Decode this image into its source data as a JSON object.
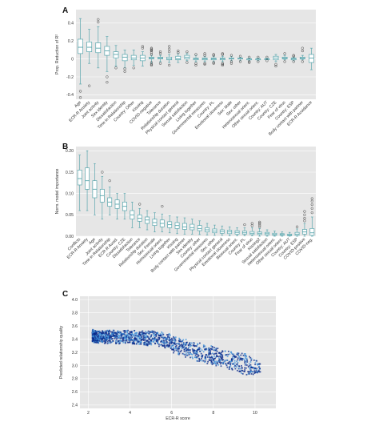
{
  "panels": {
    "A": {
      "label": "A"
    },
    "B": {
      "label": "B"
    },
    "C": {
      "label": "C"
    }
  },
  "colors": {
    "box": "#5aa6ad",
    "background": "#e6e6e6",
    "outlier": "#444444",
    "scatter_dark": "#0a2a8a",
    "scatter_light": "#3d8fd8"
  },
  "chart_data": [
    {
      "type": "box",
      "panel": "A",
      "ylabel": "Prop. Reduction of R²",
      "ylim": [
        -0.45,
        0.55
      ],
      "yticks": [
        -0.4,
        -0.2,
        0.0,
        0.2,
        0.4
      ],
      "grid": true,
      "categories": [
        "Age",
        "ECR-R Anxiety",
        "Joint activity",
        "Sex identity",
        "Dissatisfaction",
        "Time in Relationship",
        "Country: Other",
        "Kissing",
        "COVID-negative",
        "Tolerance",
        "Relationship duration",
        "Physical contact general",
        "Sexual satisfaction",
        "Living together",
        "Governmental measures",
        "Country: PL",
        "Emotional closeness",
        "Sex: Male",
        "Sex: other",
        "Heterosexual orient.",
        "Other sexual orient.",
        "Country: AUT",
        "Country: CZE",
        "Fear of virus",
        "Country: ESP",
        "Body contact with partner",
        "ECR-R Avoidance"
      ],
      "stats": [
        {
          "min": -0.28,
          "q1": 0.06,
          "median": 0.13,
          "q3": 0.22,
          "max": 0.45,
          "outliers": [
            -0.36,
            -0.43
          ]
        },
        {
          "min": -0.05,
          "q1": 0.08,
          "median": 0.13,
          "q3": 0.19,
          "max": 0.33,
          "outliers": [
            -0.3
          ]
        },
        {
          "min": -0.1,
          "q1": 0.07,
          "median": 0.12,
          "q3": 0.18,
          "max": 0.36,
          "outliers": [
            0.41,
            0.44
          ]
        },
        {
          "min": -0.14,
          "q1": 0.04,
          "median": 0.09,
          "q3": 0.14,
          "max": 0.25,
          "outliers": [
            -0.2,
            -0.26
          ]
        },
        {
          "min": -0.08,
          "q1": 0.01,
          "median": 0.05,
          "q3": 0.08,
          "max": 0.15,
          "outliers": [
            -0.1
          ]
        },
        {
          "min": -0.1,
          "q1": -0.02,
          "median": 0.02,
          "q3": 0.05,
          "max": 0.1,
          "outliers": [
            -0.11,
            -0.14
          ]
        },
        {
          "min": -0.07,
          "q1": -0.01,
          "median": 0.01,
          "q3": 0.04,
          "max": 0.1,
          "outliers": [
            -0.1
          ]
        },
        {
          "min": -0.08,
          "q1": -0.02,
          "median": 0.01,
          "q3": 0.04,
          "max": 0.08,
          "outliers": [
            0.12,
            0.14
          ]
        },
        {
          "min": -0.05,
          "q1": 0.0,
          "median": 0.01,
          "q3": 0.02,
          "max": 0.04,
          "outliers": [
            0.05,
            0.07,
            0.09,
            0.1,
            0.11,
            0.12,
            -0.04,
            -0.06,
            -0.07
          ]
        },
        {
          "min": -0.03,
          "q1": 0.0,
          "median": 0.01,
          "q3": 0.02,
          "max": 0.04,
          "outliers": [
            0.06,
            0.08,
            -0.05
          ]
        },
        {
          "min": -0.04,
          "q1": -0.01,
          "median": 0.0,
          "q3": 0.02,
          "max": 0.05,
          "outliers": [
            0.08,
            0.11,
            0.14,
            -0.07
          ]
        },
        {
          "min": -0.04,
          "q1": -0.01,
          "median": 0.0,
          "q3": 0.03,
          "max": 0.06,
          "outliers": [
            0.07,
            0.09
          ]
        },
        {
          "min": -0.02,
          "q1": 0.0,
          "median": 0.02,
          "q3": 0.04,
          "max": 0.06,
          "outliers": [
            0.08,
            -0.04
          ]
        },
        {
          "min": -0.03,
          "q1": -0.01,
          "median": 0.0,
          "q3": 0.01,
          "max": 0.04,
          "outliers": [
            0.05,
            -0.05,
            -0.07
          ]
        },
        {
          "min": -0.03,
          "q1": -0.01,
          "median": 0.0,
          "q3": 0.01,
          "max": 0.03,
          "outliers": [
            0.04,
            0.06,
            -0.05,
            -0.06
          ]
        },
        {
          "min": -0.03,
          "q1": -0.01,
          "median": 0.0,
          "q3": 0.01,
          "max": 0.03,
          "outliers": [
            0.04,
            0.05,
            -0.04,
            -0.05
          ]
        },
        {
          "min": -0.03,
          "q1": -0.01,
          "median": 0.0,
          "q3": 0.01,
          "max": 0.03,
          "outliers": [
            0.05,
            0.06,
            -0.05,
            -0.06,
            -0.07
          ]
        },
        {
          "min": -0.02,
          "q1": 0.0,
          "median": 0.0,
          "q3": 0.01,
          "max": 0.03,
          "outliers": [
            0.04,
            -0.03,
            -0.05
          ]
        },
        {
          "min": -0.02,
          "q1": 0.0,
          "median": 0.0,
          "q3": 0.01,
          "max": 0.02,
          "outliers": [
            0.03,
            -0.03
          ]
        },
        {
          "min": -0.02,
          "q1": -0.01,
          "median": 0.0,
          "q3": 0.0,
          "max": 0.01,
          "outliers": [
            0.02,
            -0.03,
            -0.04
          ]
        },
        {
          "min": -0.02,
          "q1": -0.01,
          "median": 0.0,
          "q3": 0.0,
          "max": 0.01,
          "outliers": [
            0.02,
            -0.03
          ]
        },
        {
          "min": -0.01,
          "q1": 0.0,
          "median": 0.0,
          "q3": 0.0,
          "max": 0.01,
          "outliers": [
            0.02,
            -0.02
          ]
        },
        {
          "min": -0.03,
          "q1": -0.01,
          "median": 0.01,
          "q3": 0.03,
          "max": 0.05,
          "outliers": [
            -0.06,
            -0.08
          ]
        },
        {
          "min": -0.01,
          "q1": 0.0,
          "median": 0.01,
          "q3": 0.02,
          "max": 0.04,
          "outliers": [
            0.06,
            -0.03
          ]
        },
        {
          "min": -0.02,
          "q1": -0.01,
          "median": 0.0,
          "q3": 0.01,
          "max": 0.02,
          "outliers": [
            0.03,
            0.04,
            -0.03
          ]
        },
        {
          "min": -0.01,
          "q1": 0.0,
          "median": 0.01,
          "q3": 0.02,
          "max": 0.04,
          "outliers": [
            0.09,
            0.12,
            -0.03
          ]
        },
        {
          "min": -0.12,
          "q1": -0.04,
          "median": 0.01,
          "q3": 0.05,
          "max": 0.12,
          "outliers": []
        }
      ]
    },
    {
      "type": "box",
      "panel": "B",
      "ylabel": "Norm. model importance",
      "ylim": [
        0,
        0.21
      ],
      "yticks": [
        0.0,
        0.05,
        0.1,
        0.15,
        0.2
      ],
      "yticklabels": [
        "0.00",
        "0.05",
        "0.10",
        "0.15",
        "0.20"
      ],
      "grid": true,
      "categories": [
        "Conflicts",
        "ECR-R Anxiety",
        "Age",
        "Joint activity",
        "Time in Relationship",
        "ECR-R Avoid.",
        "Country: CZE",
        "Dissatisfaction",
        "Tolerance",
        "Relationship duration",
        "Sex: Female",
        "Homosexual orient.",
        "Living together",
        "Kissing",
        "Body contact with partner",
        "Sex identity",
        "Country: other",
        "Governmental measures",
        "Sex: other",
        "Physical contact general",
        "Emotional closeness",
        "Bisexual orient.",
        "Country: PL",
        "Fear of virus",
        "Kissing2",
        "Sexual satisfaction",
        "Heterosexual orient.",
        "Other sexual orient.",
        "Country: AUT",
        "Country: ESP",
        "COVID-positive",
        "COVID-neg."
      ],
      "stats": [
        {
          "min": 0.06,
          "q1": 0.12,
          "median": 0.135,
          "q3": 0.155,
          "max": 0.19,
          "outliers": []
        },
        {
          "min": 0.06,
          "q1": 0.11,
          "median": 0.13,
          "q3": 0.16,
          "max": 0.2,
          "outliers": []
        },
        {
          "min": 0.05,
          "q1": 0.09,
          "median": 0.11,
          "q3": 0.13,
          "max": 0.17,
          "outliers": []
        },
        {
          "min": 0.04,
          "q1": 0.08,
          "median": 0.095,
          "q3": 0.11,
          "max": 0.14,
          "outliers": [
            0.15
          ]
        },
        {
          "min": 0.05,
          "q1": 0.07,
          "median": 0.08,
          "q3": 0.09,
          "max": 0.115,
          "outliers": [
            0.13
          ]
        },
        {
          "min": 0.04,
          "q1": 0.065,
          "median": 0.075,
          "q3": 0.085,
          "max": 0.1,
          "outliers": []
        },
        {
          "min": 0.04,
          "q1": 0.06,
          "median": 0.07,
          "q3": 0.08,
          "max": 0.1,
          "outliers": []
        },
        {
          "min": 0.02,
          "q1": 0.04,
          "median": 0.05,
          "q3": 0.06,
          "max": 0.08,
          "outliers": []
        },
        {
          "min": 0.02,
          "q1": 0.035,
          "median": 0.042,
          "q3": 0.05,
          "max": 0.065,
          "outliers": [
            0.075
          ]
        },
        {
          "min": 0.015,
          "q1": 0.03,
          "median": 0.038,
          "q3": 0.045,
          "max": 0.06,
          "outliers": []
        },
        {
          "min": 0.01,
          "q1": 0.025,
          "median": 0.032,
          "q3": 0.04,
          "max": 0.055,
          "outliers": []
        },
        {
          "min": 0.01,
          "q1": 0.022,
          "median": 0.03,
          "q3": 0.038,
          "max": 0.052,
          "outliers": [
            0.07
          ]
        },
        {
          "min": 0.008,
          "q1": 0.02,
          "median": 0.027,
          "q3": 0.034,
          "max": 0.048,
          "outliers": []
        },
        {
          "min": 0.006,
          "q1": 0.018,
          "median": 0.025,
          "q3": 0.032,
          "max": 0.045,
          "outliers": []
        },
        {
          "min": 0.005,
          "q1": 0.016,
          "median": 0.022,
          "q3": 0.03,
          "max": 0.043,
          "outliers": []
        },
        {
          "min": 0.005,
          "q1": 0.015,
          "median": 0.02,
          "q3": 0.028,
          "max": 0.04,
          "outliers": []
        },
        {
          "min": 0.004,
          "q1": 0.013,
          "median": 0.018,
          "q3": 0.025,
          "max": 0.036,
          "outliers": []
        },
        {
          "min": 0.003,
          "q1": 0.01,
          "median": 0.015,
          "q3": 0.02,
          "max": 0.03,
          "outliers": []
        },
        {
          "min": 0.002,
          "q1": 0.008,
          "median": 0.012,
          "q3": 0.017,
          "max": 0.026,
          "outliers": []
        },
        {
          "min": 0.002,
          "q1": 0.007,
          "median": 0.011,
          "q3": 0.015,
          "max": 0.024,
          "outliers": []
        },
        {
          "min": 0.001,
          "q1": 0.006,
          "median": 0.01,
          "q3": 0.014,
          "max": 0.022,
          "outliers": []
        },
        {
          "min": 0.001,
          "q1": 0.005,
          "median": 0.009,
          "q3": 0.013,
          "max": 0.02,
          "outliers": []
        },
        {
          "min": 0.001,
          "q1": 0.005,
          "median": 0.008,
          "q3": 0.012,
          "max": 0.02,
          "outliers": [
            0.027
          ]
        },
        {
          "min": 0.001,
          "q1": 0.004,
          "median": 0.007,
          "q3": 0.011,
          "max": 0.02,
          "outliers": [
            0.025,
            0.03
          ]
        },
        {
          "min": 0.0,
          "q1": 0.004,
          "median": 0.007,
          "q3": 0.01,
          "max": 0.018,
          "outliers": [
            0.022,
            0.026,
            0.03,
            0.033
          ]
        },
        {
          "min": 0.0,
          "q1": 0.003,
          "median": 0.006,
          "q3": 0.009,
          "max": 0.015,
          "outliers": []
        },
        {
          "min": 0.0,
          "q1": 0.002,
          "median": 0.004,
          "q3": 0.007,
          "max": 0.012,
          "outliers": []
        },
        {
          "min": 0.0,
          "q1": 0.002,
          "median": 0.004,
          "q3": 0.006,
          "max": 0.01,
          "outliers": []
        },
        {
          "min": 0.0,
          "q1": 0.001,
          "median": 0.003,
          "q3": 0.005,
          "max": 0.009,
          "outliers": []
        },
        {
          "min": 0.0,
          "q1": 0.002,
          "median": 0.005,
          "q3": 0.009,
          "max": 0.017,
          "outliers": [
            0.022
          ]
        },
        {
          "min": 0.0,
          "q1": 0.005,
          "median": 0.01,
          "q3": 0.016,
          "max": 0.03,
          "outliers": [
            0.036,
            0.042,
            0.05,
            0.058
          ]
        },
        {
          "min": 0.0,
          "q1": 0.002,
          "median": 0.008,
          "q3": 0.018,
          "max": 0.045,
          "outliers": [
            0.055,
            0.065,
            0.074,
            0.082,
            0.088
          ]
        }
      ]
    },
    {
      "type": "scatter",
      "panel": "C",
      "xlabel": "ECR-R score",
      "ylabel": "Predicted relationship quality",
      "xlim": [
        1.6,
        11
      ],
      "ylim": [
        2.35,
        4.05
      ],
      "xticks": [
        2,
        4,
        6,
        8,
        10
      ],
      "yticks": [
        2.4,
        2.6,
        2.8,
        3.0,
        3.2,
        3.4,
        3.6,
        3.8,
        4.0
      ],
      "yticklabels": [
        "2.4",
        "2.6",
        "2.8",
        "3.0",
        "3.2",
        "3.4",
        "3.6",
        "3.8",
        "4.0"
      ],
      "grid": true,
      "trend": [
        {
          "x": 2.2,
          "y_center": 3.44,
          "y_spread": 0.08
        },
        {
          "x": 4.0,
          "y_center": 3.43,
          "y_spread": 0.09
        },
        {
          "x": 5.5,
          "y_center": 3.4,
          "y_spread": 0.1
        },
        {
          "x": 6.5,
          "y_center": 3.28,
          "y_spread": 0.12
        },
        {
          "x": 7.5,
          "y_center": 3.18,
          "y_spread": 0.13
        },
        {
          "x": 8.5,
          "y_center": 3.1,
          "y_spread": 0.14
        },
        {
          "x": 9.5,
          "y_center": 3.03,
          "y_spread": 0.14
        },
        {
          "x": 10.3,
          "y_center": 2.95,
          "y_spread": 0.1
        }
      ]
    }
  ]
}
